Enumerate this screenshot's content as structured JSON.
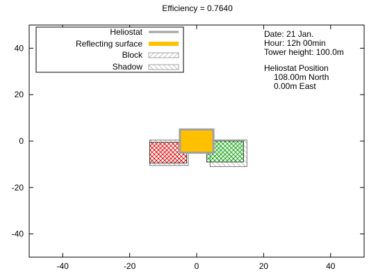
{
  "chart_data": {
    "type": "scatter",
    "title": "Efficiency =  0.7640",
    "xlabel": "",
    "ylabel": "",
    "xlim": [
      -50,
      50
    ],
    "ylim": [
      -50,
      50
    ],
    "xticks": [
      -40,
      -20,
      0,
      20,
      40
    ],
    "yticks": [
      -40,
      -20,
      0,
      20,
      40
    ],
    "grid": false,
    "legend_position": "top-left",
    "legend": [
      {
        "label": "Heliostat",
        "style": "line",
        "color": "#a0a0a0"
      },
      {
        "label": "Reflecting surface",
        "style": "fill",
        "color": "#ffc000"
      },
      {
        "label": "Block",
        "style": "hatch",
        "color": "#888888"
      },
      {
        "label": "Shadow",
        "style": "hatch",
        "color": "#888888"
      }
    ],
    "info": {
      "date": "Date: 21 Jan.",
      "hour": "Hour: 12h 00min",
      "tower": "Tower height:  100.0m",
      "position_title": "Heliostat Position",
      "north": "108.00m North",
      "east": "0.00m East"
    },
    "heliostat": {
      "x": [
        -5,
        5
      ],
      "y": [
        -5,
        5
      ],
      "color": "#a0a0a0"
    },
    "reflecting_surface": {
      "x": [
        -5,
        5
      ],
      "y": [
        -5,
        5
      ],
      "color": "#ffc000"
    },
    "shadows": [
      {
        "x": [
          -14,
          -2.5
        ],
        "y": [
          -10.5,
          0.5
        ]
      },
      {
        "x": [
          4,
          15
        ],
        "y": [
          -11,
          0.5
        ]
      }
    ],
    "blocks": [
      {
        "x": [
          -14,
          -3
        ],
        "y": [
          -9.5,
          -0.5
        ],
        "color": "#ff0000"
      },
      {
        "x": [
          3,
          14
        ],
        "y": [
          -9,
          0
        ],
        "color": "#00b000"
      }
    ]
  }
}
